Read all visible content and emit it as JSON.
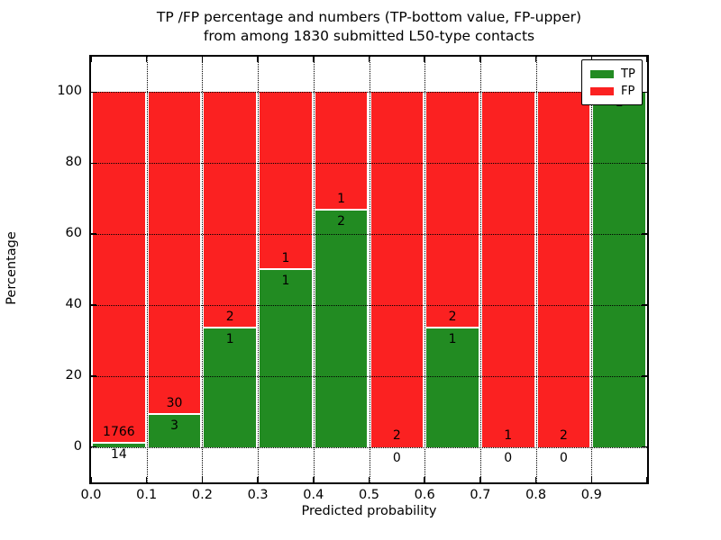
{
  "chart_data": {
    "type": "bar",
    "stacked": true,
    "title_line1": "TP /FP percentage and numbers (TP-bottom value, FP-upper)",
    "title_line2": "from among 1830 submitted L50-type contacts",
    "xlabel": "Predicted probability",
    "ylabel": "Percentage",
    "xlim": [
      0.0,
      1.0
    ],
    "ylim": [
      -10,
      110
    ],
    "xticks": [
      0.0,
      0.1,
      0.2,
      0.3,
      0.4,
      0.5,
      0.6,
      0.7,
      0.8,
      0.9
    ],
    "xticklabels": [
      "0.0",
      "0.1",
      "0.2",
      "0.3",
      "0.4",
      "0.5",
      "0.6",
      "0.7",
      "0.8",
      "0.9"
    ],
    "yticks": [
      0,
      20,
      40,
      60,
      80,
      100
    ],
    "yticklabels": [
      "0",
      "20",
      "40",
      "60",
      "80",
      "100"
    ],
    "grid": true,
    "total_contacts": 1830,
    "series_note": "Each bin stacks TP (green, bottom) and FP (red, top) as percentage of bin total; numeric labels show raw counts (TP below boundary, FP above)",
    "bins": [
      {
        "x0": 0.0,
        "x1": 0.1,
        "tp": 14,
        "fp": 1766,
        "tp_pct": 0.79,
        "tp_label": "14",
        "fp_label": "1766"
      },
      {
        "x0": 0.1,
        "x1": 0.2,
        "tp": 3,
        "fp": 30,
        "tp_pct": 9.09,
        "tp_label": "3",
        "fp_label": "30"
      },
      {
        "x0": 0.2,
        "x1": 0.3,
        "tp": 1,
        "fp": 2,
        "tp_pct": 33.33,
        "tp_label": "1",
        "fp_label": "2"
      },
      {
        "x0": 0.3,
        "x1": 0.4,
        "tp": 1,
        "fp": 1,
        "tp_pct": 50.0,
        "tp_label": "1",
        "fp_label": "1"
      },
      {
        "x0": 0.4,
        "x1": 0.5,
        "tp": 2,
        "fp": 1,
        "tp_pct": 66.67,
        "tp_label": "2",
        "fp_label": "1"
      },
      {
        "x0": 0.5,
        "x1": 0.6,
        "tp": 0,
        "fp": 2,
        "tp_pct": 0.0,
        "tp_label": "0",
        "fp_label": "2"
      },
      {
        "x0": 0.6,
        "x1": 0.7,
        "tp": 1,
        "fp": 2,
        "tp_pct": 33.33,
        "tp_label": "1",
        "fp_label": "2"
      },
      {
        "x0": 0.7,
        "x1": 0.8,
        "tp": 0,
        "fp": 1,
        "tp_pct": 0.0,
        "tp_label": "0",
        "fp_label": "1"
      },
      {
        "x0": 0.8,
        "x1": 0.9,
        "tp": 0,
        "fp": 2,
        "tp_pct": 0.0,
        "tp_label": "0",
        "fp_label": "2"
      },
      {
        "x0": 0.9,
        "x1": 1.0,
        "tp": 1,
        "fp": 0,
        "tp_pct": 100.0,
        "tp_label": "1",
        "fp_label": null
      }
    ],
    "legend": {
      "position": "upper right",
      "entries": [
        {
          "label": "TP",
          "color": "#228b22"
        },
        {
          "label": "FP",
          "color": "#fb2121"
        }
      ]
    },
    "colors": {
      "tp": "#228b22",
      "fp": "#fb2121",
      "edge": "#ffffff",
      "text": "#000000"
    }
  }
}
